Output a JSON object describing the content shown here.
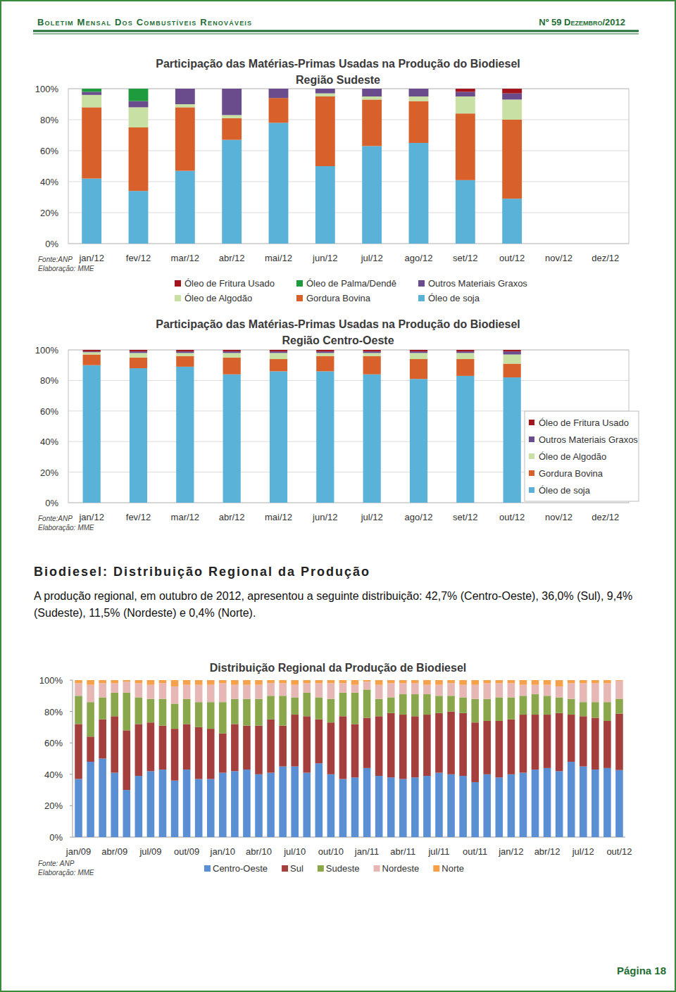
{
  "header": {
    "title": "Boletim Mensal Dos Combustíveis Renováveis",
    "issue": "Nº 59 Dezembro/2012"
  },
  "chart_data": [
    {
      "type": "bar",
      "stacked": true,
      "title": "Participação das Matérias-Primas Usadas na Produção do Biodiesel",
      "subtitle": "Região Sudeste",
      "categories": [
        "jan/12",
        "fev/12",
        "mar/12",
        "abr/12",
        "mai/12",
        "jun/12",
        "jul/12",
        "ago/12",
        "set/12",
        "out/12",
        "nov/12",
        "dez/12"
      ],
      "series": [
        {
          "name": "Óleo de soja",
          "color": "#5ab2d8",
          "values": [
            42,
            34,
            47,
            67,
            78,
            50,
            63,
            65,
            41,
            29,
            null,
            null
          ]
        },
        {
          "name": "Gordura Bovina",
          "color": "#d8602a",
          "values": [
            46,
            41,
            41,
            14,
            16,
            45,
            30,
            27,
            43,
            51,
            null,
            null
          ]
        },
        {
          "name": "Óleo de Algodão",
          "color": "#c8e0a4",
          "values": [
            8,
            13,
            2,
            2,
            0,
            2,
            2,
            3,
            11,
            13,
            null,
            null
          ]
        },
        {
          "name": "Outros Materiais Graxos",
          "color": "#6a4c8c",
          "values": [
            2,
            4,
            10,
            17,
            6,
            3,
            5,
            5,
            3,
            4,
            null,
            null
          ]
        },
        {
          "name": "Óleo de Palma/Dendê",
          "color": "#1e9b3c",
          "values": [
            2,
            8,
            0,
            0,
            0,
            0,
            0,
            0,
            0,
            0,
            null,
            null
          ]
        },
        {
          "name": "Óleo de Fritura Usado",
          "color": "#a3141c",
          "values": [
            0,
            0,
            0,
            0,
            0,
            0,
            0,
            0,
            2,
            3,
            null,
            null
          ]
        }
      ],
      "ylim": [
        0,
        100
      ],
      "yticks": [
        {
          "value": 0,
          "label": "0%"
        },
        {
          "value": 20,
          "label": "20%"
        },
        {
          "value": 40,
          "label": "40%"
        },
        {
          "value": 60,
          "label": "60%"
        },
        {
          "value": 80,
          "label": "80%"
        },
        {
          "value": 100,
          "label": "100%"
        }
      ],
      "grid": true,
      "legend": "bottom",
      "annotations": [
        "Fonte:ANP",
        "Elaboração: MME"
      ]
    },
    {
      "type": "bar",
      "stacked": true,
      "title": "Participação das Matérias-Primas Usadas na Produção do Biodiesel",
      "subtitle": "Região Centro-Oeste",
      "categories": [
        "jan/12",
        "fev/12",
        "mar/12",
        "abr/12",
        "mai/12",
        "jun/12",
        "jul/12",
        "ago/12",
        "set/12",
        "out/12",
        "nov/12",
        "dez/12"
      ],
      "series": [
        {
          "name": "Óleo de soja",
          "color": "#5ab2d8",
          "values": [
            90,
            88,
            89,
            84,
            86,
            86,
            84,
            81,
            83,
            82,
            null,
            null
          ]
        },
        {
          "name": "Gordura Bovina",
          "color": "#d8602a",
          "values": [
            7,
            7,
            7,
            11,
            8,
            10,
            12,
            13,
            11,
            9,
            null,
            null
          ]
        },
        {
          "name": "Óleo de Algodão",
          "color": "#c8e0a4",
          "values": [
            1.5,
            3,
            2,
            3,
            4,
            2,
            2,
            4,
            4,
            6,
            null,
            null
          ]
        },
        {
          "name": "Outros Materiais Graxos",
          "color": "#6a4c8c",
          "values": [
            0.5,
            1,
            1,
            1,
            1,
            1,
            1,
            1,
            1,
            2,
            null,
            null
          ]
        },
        {
          "name": "Óleo de Fritura Usado",
          "color": "#a3141c",
          "values": [
            1,
            1,
            1,
            1,
            1,
            1,
            1,
            1,
            1,
            1,
            null,
            null
          ]
        }
      ],
      "ylim": [
        0,
        100
      ],
      "yticks": [
        {
          "value": 0,
          "label": "0%"
        },
        {
          "value": 20,
          "label": "20%"
        },
        {
          "value": 40,
          "label": "40%"
        },
        {
          "value": 60,
          "label": "60%"
        },
        {
          "value": 80,
          "label": "80%"
        },
        {
          "value": 100,
          "label": "100%"
        }
      ],
      "grid": true,
      "legend": "right",
      "annotations": [
        "Fonte:ANP",
        "Elaboração: MME"
      ]
    },
    {
      "type": "bar",
      "stacked": true,
      "title": "Distribuição Regional da Produção de Biodiesel",
      "categories": [
        "jan/09",
        null,
        null,
        "abr/09",
        null,
        null,
        "jul/09",
        null,
        null,
        "out/09",
        null,
        null,
        "jan/10",
        null,
        null,
        "abr/10",
        null,
        null,
        "jul/10",
        null,
        null,
        "out/10",
        null,
        null,
        "jan/11",
        null,
        null,
        "abr/11",
        null,
        null,
        "jul/11",
        null,
        null,
        "out/11",
        null,
        null,
        "jan/12",
        null,
        null,
        "abr/12",
        null,
        null,
        "jul/12",
        null,
        null,
        "out/12"
      ],
      "series": [
        {
          "name": "Centro-Oeste",
          "color": "#5b8fd4",
          "values": [
            37,
            48,
            50,
            41,
            30,
            39,
            42,
            43,
            36,
            43,
            37,
            37,
            41,
            42,
            43,
            40,
            41,
            45,
            45,
            41,
            47,
            40,
            37,
            38,
            44,
            39,
            38,
            37,
            38,
            39,
            41,
            40,
            39,
            35,
            40,
            38,
            40,
            41,
            43,
            44,
            42,
            48,
            45,
            43,
            44,
            42.7
          ]
        },
        {
          "name": "Sul",
          "color": "#a53f3d",
          "values": [
            35,
            16,
            25,
            36,
            38,
            33,
            31,
            28,
            33,
            29,
            33,
            32,
            25,
            30,
            28,
            31,
            34,
            26,
            33,
            36,
            28,
            33,
            40,
            34,
            32,
            38,
            41,
            41,
            39,
            39,
            38,
            40,
            40,
            38,
            34,
            36,
            35,
            37,
            35,
            34,
            37,
            30,
            32,
            33,
            30,
            36
          ]
        },
        {
          "name": "Sudeste",
          "color": "#8aa84b",
          "values": [
            18,
            22,
            14,
            15,
            24,
            17,
            15,
            17,
            16,
            16,
            16,
            17,
            20,
            16,
            17,
            17,
            15,
            19,
            11,
            15,
            14,
            15,
            15,
            20,
            18,
            11,
            10,
            13,
            14,
            13,
            11,
            10,
            10,
            15,
            14,
            15,
            14,
            12,
            13,
            12,
            10,
            10,
            9,
            10,
            12,
            9.4
          ]
        },
        {
          "name": "Nordeste",
          "color": "#e7b7b5",
          "values": [
            8,
            11,
            9,
            6,
            7,
            9,
            9,
            10,
            11,
            9,
            11,
            11,
            12,
            9,
            9,
            9,
            8,
            8,
            8,
            6,
            9,
            10,
            6,
            5,
            5,
            9,
            9,
            7,
            7,
            6,
            7,
            8,
            8,
            9,
            10,
            9,
            9,
            7,
            6,
            7,
            7,
            10,
            12,
            12,
            12,
            11.5
          ]
        },
        {
          "name": "Norte",
          "color": "#f5a04a",
          "values": [
            2,
            3,
            2,
            2,
            1,
            2,
            3,
            2,
            4,
            3,
            3,
            3,
            2,
            3,
            3,
            3,
            2,
            2,
            3,
            2,
            2,
            2,
            2,
            3,
            1,
            3,
            2,
            2,
            2,
            3,
            3,
            2,
            3,
            3,
            2,
            2,
            2,
            3,
            3,
            3,
            4,
            2,
            2,
            2,
            2,
            0.4
          ]
        }
      ],
      "ylim": [
        0,
        100
      ],
      "yticks": [
        {
          "value": 0,
          "label": "0%"
        },
        {
          "value": 20,
          "label": "20%"
        },
        {
          "value": 40,
          "label": "40%"
        },
        {
          "value": 60,
          "label": "60%"
        },
        {
          "value": 80,
          "label": "80%"
        },
        {
          "value": 100,
          "label": "100%"
        }
      ],
      "grid": false,
      "legend": "bottom",
      "annotations": [
        "Fonte: ANP",
        "Elaboração: MME"
      ]
    }
  ],
  "section": {
    "heading": "Biodiesel: Distribuição Regional da Produção",
    "text": "A produção regional, em outubro de 2012, apresentou a seguinte distribuição: 42,7% (Centro-Oeste), 36,0% (Sul), 9,4% (Sudeste), 11,5% (Nordeste) e 0,4% (Norte)."
  },
  "footer": {
    "page": "Página 18"
  }
}
